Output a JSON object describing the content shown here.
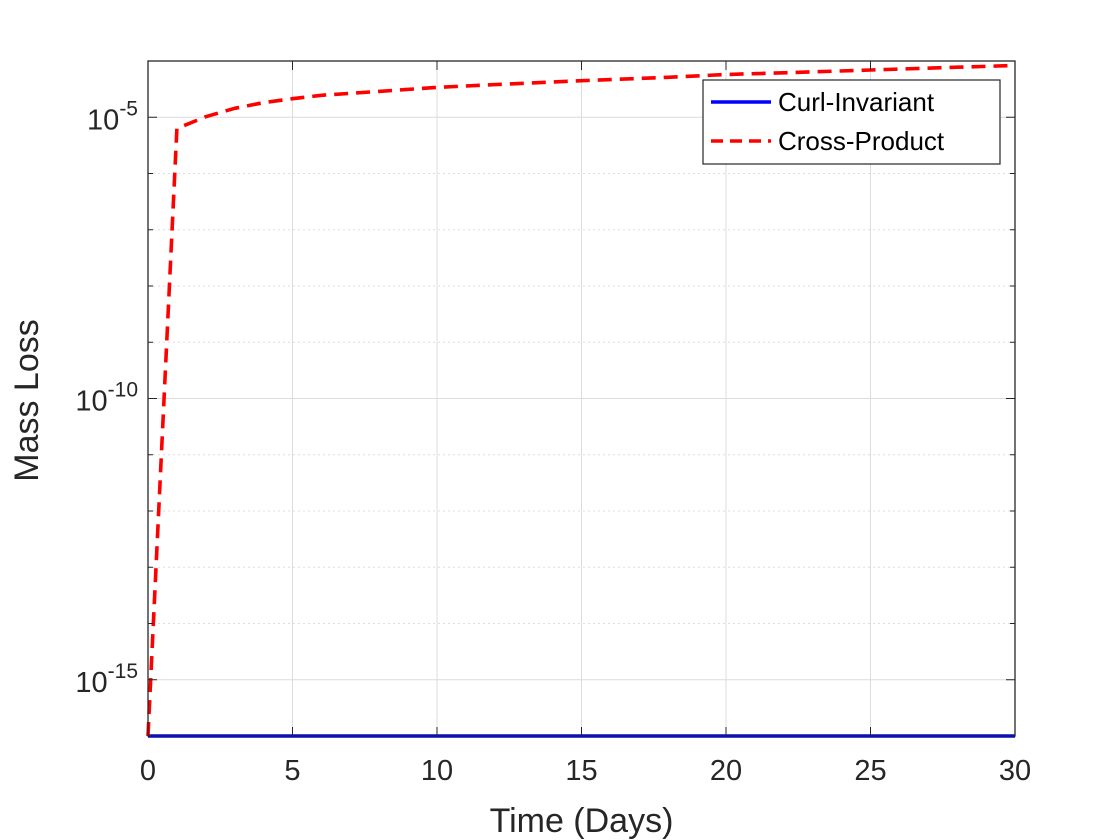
{
  "chart_data": {
    "type": "line",
    "xlabel": "Time (Days)",
    "ylabel": "Mass Loss",
    "xlim": [
      0,
      30
    ],
    "ylim_exponent": [
      -16,
      -4
    ],
    "yscale": "log",
    "xticks": [
      0,
      5,
      10,
      15,
      20,
      25,
      30
    ],
    "xtick_labels": [
      "0",
      "5",
      "10",
      "15",
      "20",
      "25",
      "30"
    ],
    "yticks_major": [
      {
        "exponent": -15,
        "base": "10",
        "power": "-15"
      },
      {
        "exponent": -10,
        "base": "10",
        "power": "-10"
      },
      {
        "exponent": -5,
        "base": "10",
        "power": "-5"
      }
    ],
    "grid": true,
    "minor_grid": true,
    "legend_position": "top-right",
    "series": [
      {
        "name": "Curl-Invariant",
        "color": "#0000ff",
        "style": "solid",
        "x": [
          0,
          30
        ],
        "y_exponent": [
          -16,
          -16
        ]
      },
      {
        "name": "Cross-Product",
        "color": "#ff0000",
        "style": "dashed",
        "x": [
          0,
          1,
          2,
          3,
          4,
          5,
          6,
          8,
          10,
          12,
          15,
          18,
          20,
          22,
          25,
          28,
          30
        ],
        "y_exponent": [
          -16,
          -5.2,
          -4.99,
          -4.84,
          -4.74,
          -4.67,
          -4.61,
          -4.54,
          -4.47,
          -4.42,
          -4.35,
          -4.29,
          -4.24,
          -4.21,
          -4.16,
          -4.11,
          -4.08
        ]
      }
    ]
  }
}
